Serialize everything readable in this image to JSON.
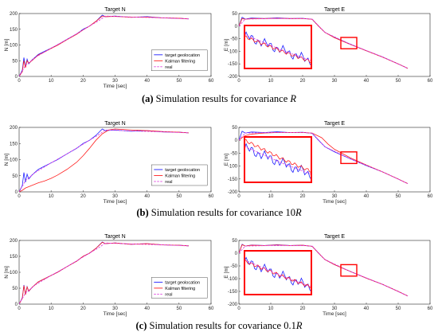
{
  "colors": {
    "target": "#1f1fff",
    "kalman": "#ff1f1f",
    "real": "#e040e0",
    "zoom_box": "#ff0000"
  },
  "captions": [
    {
      "tag": "(a)",
      "text": "Simulation results for covariance ",
      "symbol": "R"
    },
    {
      "tag": "(b)",
      "text": "Simulation results for covariance 10",
      "symbol": "R"
    },
    {
      "tag": "(c)",
      "text": "Simulation results for covariance 0.1",
      "symbol": "R"
    }
  ],
  "chart_data": [
    {
      "type": "line",
      "panel": "a-left",
      "title": "Target N",
      "xlabel": "Time [sec]",
      "ylabel": "N [m]",
      "xlim": [
        0,
        60
      ],
      "ylim": [
        0,
        200
      ],
      "xticks": [
        0,
        10,
        20,
        30,
        40,
        50,
        60
      ],
      "yticks": [
        0,
        50,
        100,
        150,
        200
      ],
      "legend": {
        "position": "bottom-right",
        "entries": [
          "target geolocation",
          "Kalman filtering",
          "real"
        ]
      },
      "series": [
        {
          "name": "target geolocation",
          "x": [
            0,
            1,
            1.5,
            2,
            2.5,
            3,
            4,
            6,
            8,
            10,
            12,
            15,
            18,
            20,
            22,
            24,
            26,
            27,
            30,
            35,
            40,
            45,
            50,
            53
          ],
          "y": [
            0,
            20,
            60,
            30,
            55,
            40,
            52,
            70,
            80,
            90,
            100,
            118,
            135,
            150,
            160,
            175,
            195,
            190,
            192,
            188,
            190,
            186,
            185,
            183
          ]
        },
        {
          "name": "Kalman filtering",
          "x": [
            0,
            1,
            1.5,
            2,
            2.5,
            3,
            4,
            6,
            8,
            10,
            12,
            15,
            18,
            20,
            22,
            24,
            26,
            27,
            30,
            35,
            40,
            45,
            50,
            53
          ],
          "y": [
            0,
            15,
            50,
            28,
            50,
            42,
            50,
            68,
            78,
            89,
            99,
            117,
            134,
            148,
            160,
            175,
            192,
            190,
            191,
            188,
            189,
            186,
            185,
            183
          ]
        },
        {
          "name": "real",
          "x": [
            0,
            2,
            5,
            10,
            15,
            20,
            25,
            27,
            35,
            45,
            53
          ],
          "y": [
            0,
            35,
            60,
            90,
            118,
            148,
            178,
            192,
            189,
            186,
            183
          ]
        }
      ]
    },
    {
      "type": "line",
      "panel": "a-right",
      "title": "Target E",
      "xlabel": "",
      "ylabel": "E [m]",
      "xlim": [
        0,
        60
      ],
      "ylim": [
        -200,
        50
      ],
      "xticks": [
        0,
        10,
        20,
        30,
        40,
        50,
        60
      ],
      "yticks": [
        -200,
        -150,
        -100,
        -50,
        0,
        50
      ],
      "zoom_box": {
        "x": [
          32,
          37
        ],
        "y": [
          -90,
          -45
        ]
      },
      "inset": {
        "x": [
          1,
          23
        ],
        "y": [
          -185,
          -15
        ]
      },
      "series": [
        {
          "name": "target geolocation",
          "x": [
            0,
            1,
            2,
            4,
            8,
            12,
            16,
            20,
            23,
            25,
            27,
            30,
            35,
            40,
            45,
            50,
            53
          ],
          "y": [
            0,
            35,
            28,
            32,
            30,
            33,
            30,
            31,
            27,
            0,
            -25,
            -45,
            -72,
            -98,
            -122,
            -150,
            -168
          ]
        },
        {
          "name": "Kalman filtering",
          "x": [
            0,
            1,
            2,
            4,
            8,
            12,
            16,
            20,
            23,
            25,
            27,
            30,
            35,
            40,
            45,
            50,
            53
          ],
          "y": [
            0,
            30,
            27,
            30,
            30,
            31,
            30,
            30,
            27,
            0,
            -25,
            -46,
            -73,
            -98,
            -123,
            -150,
            -168
          ]
        },
        {
          "name": "real",
          "x": [
            0,
            2,
            10,
            20,
            23,
            27,
            35,
            45,
            53
          ],
          "y": [
            0,
            28,
            30,
            30,
            28,
            -25,
            -72,
            -122,
            -168
          ]
        }
      ]
    },
    {
      "type": "line",
      "panel": "b-left",
      "title": "Target N",
      "xlabel": "Time [sec]",
      "ylabel": "N [m]",
      "xlim": [
        0,
        60
      ],
      "ylim": [
        0,
        200
      ],
      "xticks": [
        0,
        10,
        20,
        30,
        40,
        50,
        60
      ],
      "yticks": [
        0,
        50,
        100,
        150,
        200
      ],
      "legend": {
        "position": "bottom-right",
        "entries": [
          "target geolocation",
          "Kalman filtering",
          "real"
        ]
      },
      "series": [
        {
          "name": "target geolocation",
          "x": [
            0,
            1,
            1.5,
            2,
            2.5,
            3,
            4,
            6,
            8,
            10,
            12,
            15,
            18,
            20,
            22,
            24,
            26,
            27,
            30,
            35,
            40,
            45,
            50,
            53
          ],
          "y": [
            0,
            20,
            60,
            30,
            55,
            40,
            52,
            70,
            80,
            90,
            100,
            118,
            135,
            150,
            160,
            175,
            195,
            190,
            192,
            188,
            190,
            186,
            185,
            183
          ]
        },
        {
          "name": "Kalman filtering",
          "x": [
            0,
            1,
            2,
            4,
            6,
            8,
            10,
            12,
            15,
            18,
            20,
            22,
            24,
            26,
            28,
            30,
            35,
            40,
            45,
            50,
            53
          ],
          "y": [
            0,
            5,
            12,
            20,
            28,
            34,
            42,
            52,
            70,
            92,
            112,
            135,
            160,
            180,
            192,
            195,
            192,
            190,
            187,
            185,
            183
          ]
        },
        {
          "name": "real",
          "x": [
            0,
            2,
            5,
            10,
            15,
            20,
            25,
            27,
            35,
            45,
            53
          ],
          "y": [
            0,
            35,
            60,
            90,
            118,
            148,
            178,
            192,
            189,
            186,
            183
          ]
        }
      ]
    },
    {
      "type": "line",
      "panel": "b-right",
      "title": "Target E",
      "xlabel": "Time [sec]",
      "ylabel": "E [m]",
      "xlim": [
        0,
        60
      ],
      "ylim": [
        -200,
        50
      ],
      "xticks": [
        0,
        10,
        20,
        30,
        40,
        50,
        60
      ],
      "yticks": [
        -200,
        -150,
        -100,
        -50,
        0,
        50
      ],
      "zoom_box": {
        "x": [
          32,
          37
        ],
        "y": [
          -90,
          -45
        ]
      },
      "inset": {
        "x": [
          1,
          23
        ],
        "y": [
          -190,
          -20
        ]
      },
      "series": [
        {
          "name": "target geolocation",
          "x": [
            0,
            1,
            2,
            4,
            8,
            12,
            16,
            20,
            23,
            25,
            27,
            30,
            35,
            40,
            45,
            50,
            53
          ],
          "y": [
            0,
            35,
            28,
            32,
            30,
            33,
            30,
            31,
            27,
            0,
            -25,
            -45,
            -72,
            -98,
            -122,
            -150,
            -168
          ]
        },
        {
          "name": "Kalman filtering",
          "x": [
            0,
            1,
            2,
            4,
            8,
            12,
            16,
            20,
            23,
            26,
            28,
            30,
            35,
            40,
            45,
            50,
            53
          ],
          "y": [
            0,
            10,
            18,
            24,
            28,
            30,
            30,
            30,
            28,
            10,
            -15,
            -35,
            -68,
            -96,
            -122,
            -150,
            -168
          ]
        },
        {
          "name": "real",
          "x": [
            0,
            2,
            10,
            20,
            23,
            27,
            35,
            45,
            53
          ],
          "y": [
            0,
            28,
            30,
            30,
            28,
            -25,
            -72,
            -122,
            -168
          ]
        }
      ]
    },
    {
      "type": "line",
      "panel": "c-left",
      "title": "Target N",
      "xlabel": "Time [sec]",
      "ylabel": "N [m]",
      "xlim": [
        0,
        60
      ],
      "ylim": [
        0,
        200
      ],
      "xticks": [
        0,
        10,
        20,
        30,
        40,
        50,
        60
      ],
      "yticks": [
        0,
        50,
        100,
        150,
        200
      ],
      "legend": {
        "position": "bottom-right",
        "entries": [
          "target geolocation",
          "Kalman filtering",
          "real"
        ]
      },
      "series": [
        {
          "name": "target geolocation",
          "x": [
            0,
            1,
            1.5,
            2,
            2.5,
            3,
            4,
            6,
            8,
            10,
            12,
            15,
            18,
            20,
            22,
            24,
            26,
            27,
            30,
            35,
            40,
            45,
            50,
            53
          ],
          "y": [
            0,
            20,
            60,
            30,
            55,
            40,
            52,
            70,
            80,
            90,
            100,
            118,
            135,
            150,
            160,
            175,
            195,
            190,
            192,
            188,
            190,
            186,
            185,
            183
          ]
        },
        {
          "name": "Kalman filtering",
          "x": [
            0,
            1,
            1.5,
            2,
            2.5,
            3,
            4,
            6,
            8,
            10,
            12,
            15,
            18,
            20,
            22,
            24,
            26,
            27,
            30,
            35,
            40,
            45,
            50,
            53
          ],
          "y": [
            0,
            18,
            58,
            30,
            54,
            41,
            52,
            70,
            80,
            90,
            100,
            118,
            135,
            150,
            160,
            175,
            194,
            190,
            192,
            188,
            190,
            186,
            185,
            183
          ]
        },
        {
          "name": "real",
          "x": [
            0,
            2,
            5,
            10,
            15,
            20,
            25,
            27,
            35,
            45,
            53
          ],
          "y": [
            0,
            35,
            60,
            90,
            118,
            148,
            178,
            192,
            189,
            186,
            183
          ]
        }
      ]
    },
    {
      "type": "line",
      "panel": "c-right",
      "title": "Target E",
      "xlabel": "Time [sec]",
      "ylabel": "E [m]",
      "xlim": [
        0,
        60
      ],
      "ylim": [
        -200,
        50
      ],
      "xticks": [
        0,
        10,
        20,
        30,
        40,
        50,
        60
      ],
      "yticks": [
        -200,
        -150,
        -100,
        -50,
        0,
        50
      ],
      "zoom_box": {
        "x": [
          32,
          37
        ],
        "y": [
          -90,
          -45
        ]
      },
      "inset": {
        "x": [
          1,
          23
        ],
        "y": [
          -185,
          -15
        ]
      },
      "series": [
        {
          "name": "target geolocation",
          "x": [
            0,
            1,
            2,
            4,
            8,
            12,
            16,
            20,
            23,
            25,
            27,
            30,
            35,
            40,
            45,
            50,
            53
          ],
          "y": [
            0,
            35,
            28,
            32,
            30,
            33,
            30,
            31,
            27,
            0,
            -25,
            -45,
            -72,
            -98,
            -122,
            -150,
            -168
          ]
        },
        {
          "name": "Kalman filtering",
          "x": [
            0,
            1,
            2,
            4,
            8,
            12,
            16,
            20,
            23,
            25,
            27,
            30,
            35,
            40,
            45,
            50,
            53
          ],
          "y": [
            0,
            33,
            28,
            31,
            30,
            32,
            30,
            31,
            27,
            0,
            -25,
            -45,
            -72,
            -98,
            -122,
            -150,
            -168
          ]
        },
        {
          "name": "real",
          "x": [
            0,
            2,
            10,
            20,
            23,
            27,
            35,
            45,
            53
          ],
          "y": [
            0,
            28,
            30,
            30,
            28,
            -25,
            -72,
            -122,
            -168
          ]
        }
      ]
    }
  ]
}
